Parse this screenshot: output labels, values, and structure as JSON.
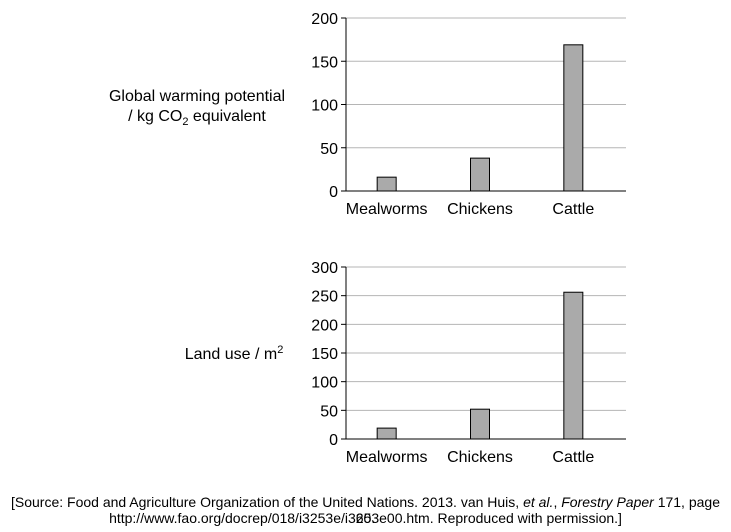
{
  "chart_data": [
    {
      "type": "bar",
      "ylabel_line1": "Global warming potential",
      "ylabel_line2_prefix": "/ kg CO",
      "ylabel_line2_sub": "2",
      "ylabel_line2_suffix": " equivalent",
      "categories": [
        "Mealworms",
        "Chickens",
        "Cattle"
      ],
      "values": [
        16,
        38,
        169
      ],
      "ylim": [
        0,
        200
      ],
      "yticks": [
        "0",
        "50",
        "100",
        "150",
        "200"
      ],
      "grid": true,
      "bar_color": "#aaaaaa"
    },
    {
      "type": "bar",
      "ylabel_prefix": "Land use / m",
      "ylabel_sup": "2",
      "categories": [
        "Mealworms",
        "Chickens",
        "Cattle"
      ],
      "values": [
        19,
        52,
        256
      ],
      "ylim": [
        0,
        300
      ],
      "yticks": [
        "0",
        "50",
        "100",
        "150",
        "200",
        "250",
        "300"
      ],
      "grid": true,
      "bar_color": "#aaaaaa"
    }
  ],
  "source": {
    "line1_part1": "[Source: Food and Agriculture Organization of the United Nations. 2013. van Huis, ",
    "line1_italic1": "et al.",
    "line1_part2": ", ",
    "line1_italic2": "Forestry Paper",
    "line1_part3": " 171, page 60.",
    "line2": "http://www.fao.org/docrep/018/i3253e/i3253e00.htm. Reproduced with permission.]"
  }
}
